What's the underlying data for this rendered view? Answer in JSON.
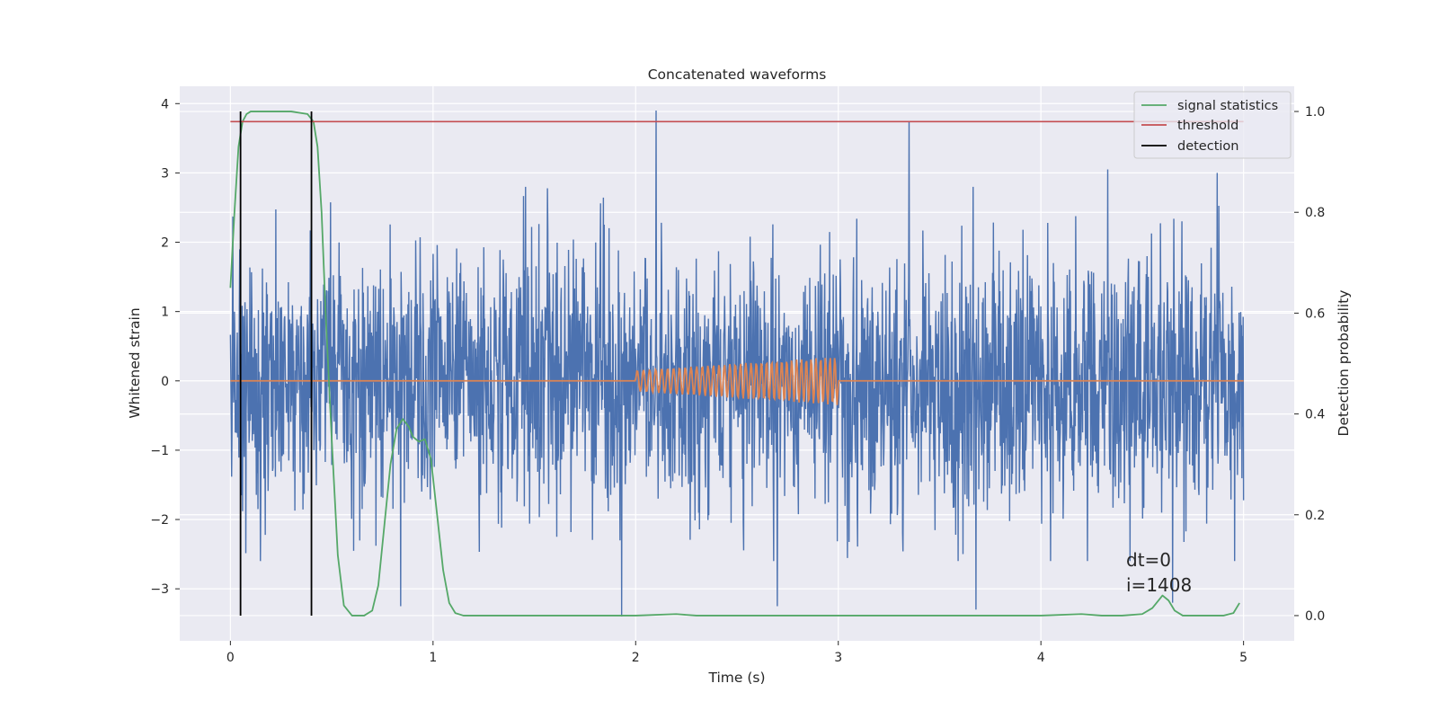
{
  "chart_data": {
    "type": "line",
    "title": "Concatenated waveforms",
    "xlabel": "Time (s)",
    "ylabel": "Whitened strain",
    "y2label": "Detection probability",
    "xlim": [
      -0.25,
      5.25
    ],
    "ylim": [
      -3.75,
      4.25
    ],
    "y2lim": [
      -0.05,
      1.05
    ],
    "xticks": [
      0,
      1,
      2,
      3,
      4,
      5
    ],
    "xtick_labels": [
      "0",
      "1",
      "2",
      "3",
      "4",
      "5"
    ],
    "yticks": [
      4,
      3,
      2,
      1,
      0,
      -1,
      -2,
      -3
    ],
    "ytick_labels": [
      "4",
      "3",
      "2",
      "1",
      "0",
      "−1",
      "−2",
      "−3"
    ],
    "y2ticks": [
      1.0,
      0.8,
      0.6,
      0.4,
      0.2,
      0.0
    ],
    "y2tick_labels": [
      "1.0",
      "0.8",
      "0.6",
      "0.4",
      "0.2",
      "0.0"
    ],
    "grid": true,
    "legend_position": "top-right",
    "colors": {
      "strain": "#4c72b0",
      "injection": "#dd8452",
      "statistic": "#55a868",
      "threshold": "#c44e52",
      "detection": "#000000",
      "axes_bg": "#eaeaf2",
      "grid": "#ffffff"
    },
    "series": [
      {
        "name": "signal statistics",
        "axis": "right",
        "x": [
          0.0,
          0.02,
          0.04,
          0.06,
          0.08,
          0.1,
          0.2,
          0.3,
          0.38,
          0.41,
          0.43,
          0.45,
          0.47,
          0.5,
          0.53,
          0.56,
          0.6,
          0.66,
          0.7,
          0.73,
          0.76,
          0.79,
          0.82,
          0.85,
          0.88,
          0.9,
          0.93,
          0.96,
          0.99,
          1.02,
          1.05,
          1.08,
          1.11,
          1.15,
          1.2,
          1.5,
          2.0,
          2.2,
          2.3,
          2.5,
          3.0,
          3.5,
          4.0,
          4.2,
          4.3,
          4.4,
          4.5,
          4.55,
          4.58,
          4.6,
          4.63,
          4.66,
          4.7,
          4.8,
          4.9,
          4.95,
          4.98
        ],
        "values": [
          0.65,
          0.8,
          0.93,
          0.98,
          0.995,
          1.0,
          1.0,
          1.0,
          0.995,
          0.98,
          0.93,
          0.8,
          0.6,
          0.35,
          0.12,
          0.02,
          0.0,
          0.0,
          0.01,
          0.06,
          0.18,
          0.3,
          0.37,
          0.39,
          0.375,
          0.355,
          0.345,
          0.35,
          0.31,
          0.2,
          0.09,
          0.025,
          0.005,
          0.0,
          0.0,
          0.0,
          0.0,
          0.003,
          0.0,
          0.0,
          0.0,
          0.0,
          0.0,
          0.003,
          0.0,
          0.0,
          0.003,
          0.015,
          0.03,
          0.04,
          0.03,
          0.01,
          0.0,
          0.0,
          0.0,
          0.005,
          0.025
        ]
      },
      {
        "name": "threshold",
        "axis": "right",
        "x": [
          0.0,
          5.0
        ],
        "values": [
          0.98,
          0.98
        ]
      },
      {
        "name": "detection",
        "axis": "right",
        "x": [
          0.05,
          0.4
        ],
        "values": [
          1.0,
          1.0
        ]
      }
    ],
    "strain": {
      "t_start": 0.0,
      "t_end": 5.0,
      "spikes": [
        {
          "x": 2.1,
          "y": 3.9
        },
        {
          "x": 3.35,
          "y": 3.75
        },
        {
          "x": 1.93,
          "y": -3.4
        },
        {
          "x": 3.68,
          "y": -3.3
        },
        {
          "x": 0.84,
          "y": -3.25
        },
        {
          "x": 2.7,
          "y": -3.25
        },
        {
          "x": 4.65,
          "y": -3.2
        },
        {
          "x": 4.33,
          "y": 3.05
        },
        {
          "x": 4.87,
          "y": 3.0
        }
      ]
    },
    "injection": {
      "x_start": 2.0,
      "x_end": 3.0,
      "amp_start": 0.15,
      "amp_end": 0.35,
      "cycles": 38
    },
    "annotations": [
      "dt=0",
      "i=1408"
    ]
  }
}
